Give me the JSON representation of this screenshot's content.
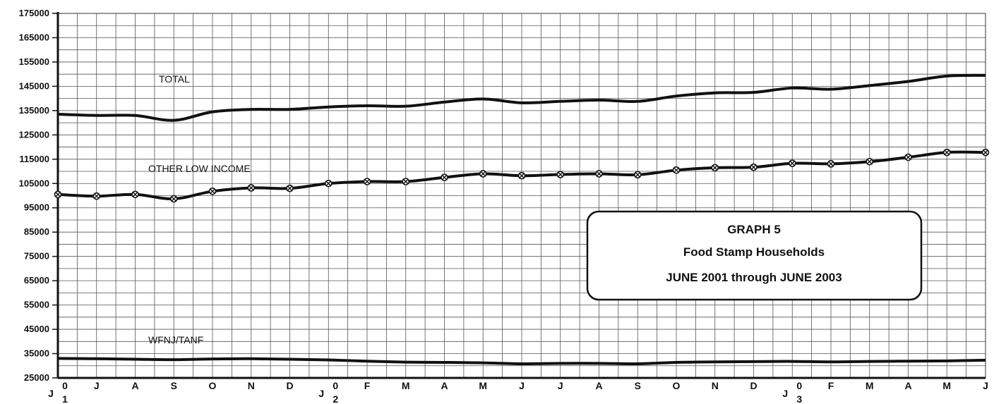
{
  "chart_data": {
    "type": "line",
    "title": "GRAPH 5",
    "subtitle": "Food Stamp Households",
    "subtitle2": "JUNE 2001 through JUNE 2003",
    "xlabel": "",
    "ylabel": "",
    "ylim": [
      25000,
      175000
    ],
    "yticks": [
      25000,
      35000,
      45000,
      55000,
      65000,
      75000,
      85000,
      95000,
      105000,
      115000,
      125000,
      135000,
      145000,
      155000,
      165000,
      175000
    ],
    "categories": [
      "J 0 1",
      "J",
      "A",
      "S",
      "O",
      "N",
      "D",
      "J 0 2",
      "F",
      "M",
      "A",
      "M",
      "J",
      "J",
      "A",
      "S",
      "O",
      "N",
      "D",
      "J 0 3",
      "F",
      "M",
      "A",
      "M",
      "J"
    ],
    "series": [
      {
        "name": "TOTAL",
        "color": "#111111",
        "marker": "none",
        "values": [
          133500,
          133000,
          133000,
          131000,
          134500,
          135500,
          135500,
          136500,
          137000,
          136800,
          138500,
          139800,
          138200,
          138800,
          139300,
          138800,
          141000,
          142300,
          142500,
          144300,
          143800,
          145300,
          147000,
          149200,
          149500
        ]
      },
      {
        "name": "OTHER LOW INCOME",
        "color": "#111111",
        "marker": "x-circle",
        "values": [
          100500,
          99800,
          100500,
          98700,
          101800,
          103200,
          103000,
          105000,
          105800,
          105800,
          107500,
          109000,
          108200,
          108700,
          109000,
          108600,
          110500,
          111500,
          111700,
          113300,
          113100,
          114000,
          115800,
          117800,
          117800
        ]
      },
      {
        "name": "WFNJ/TANF",
        "color": "#111111",
        "marker": "none",
        "values": [
          33000,
          32900,
          32700,
          32500,
          32800,
          32900,
          32700,
          32400,
          31900,
          31500,
          31400,
          31200,
          30800,
          31000,
          31000,
          30800,
          31400,
          31600,
          31700,
          31800,
          31600,
          31800,
          31900,
          32000,
          32300
        ]
      }
    ],
    "grid": true,
    "legend": "inline labels"
  }
}
